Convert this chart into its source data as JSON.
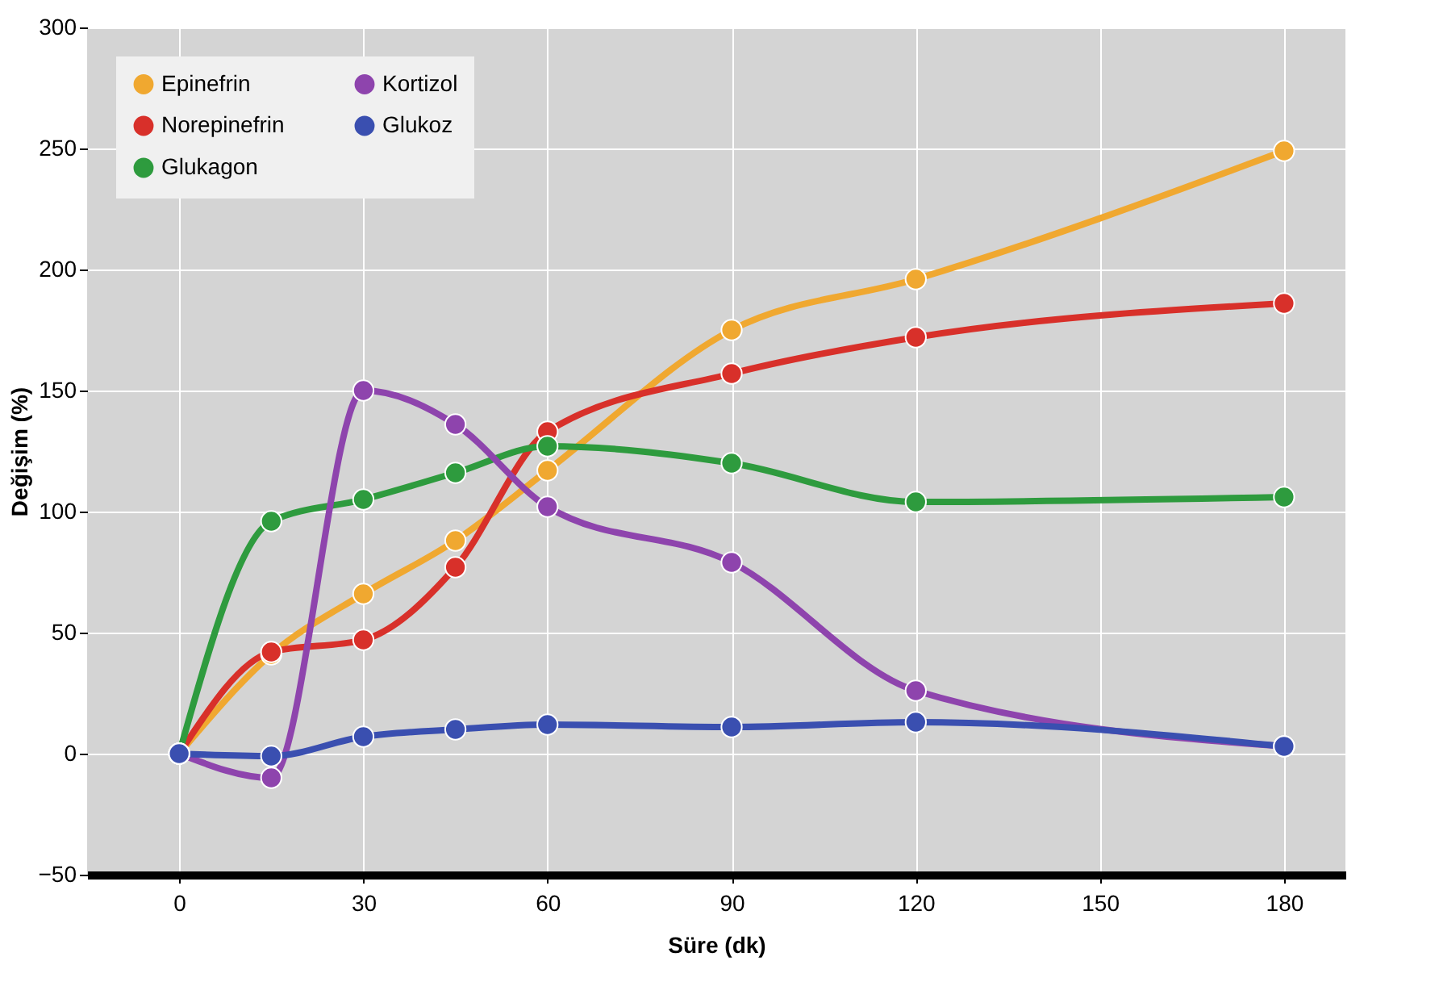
{
  "chart_data": {
    "type": "line",
    "xlabel": "Süre (dk)",
    "ylabel": "Değişim (%)",
    "x": [
      0,
      15,
      30,
      45,
      60,
      90,
      120,
      180
    ],
    "series": [
      {
        "name": "Epinefrin",
        "color": "#f0a830",
        "values": [
          0,
          41,
          66,
          88,
          117,
          175,
          196,
          249
        ]
      },
      {
        "name": "Norepinefrin",
        "color": "#d8302a",
        "values": [
          0,
          42,
          47,
          77,
          133,
          157,
          172,
          186
        ]
      },
      {
        "name": "Glukagon",
        "color": "#2e9b3e",
        "values": [
          0,
          96,
          105,
          116,
          127,
          120,
          104,
          106
        ]
      },
      {
        "name": "Kortizol",
        "color": "#8e44ad",
        "values": [
          0,
          -10,
          150,
          136,
          102,
          79,
          26,
          3
        ]
      },
      {
        "name": "Glukoz",
        "color": "#3a4fb0",
        "values": [
          0,
          -1,
          7,
          10,
          12,
          11,
          13,
          3
        ]
      }
    ],
    "xlim": [
      -15,
      190
    ],
    "xticks": [
      0,
      30,
      60,
      90,
      120,
      150,
      180
    ],
    "ylim": [
      -50,
      300
    ],
    "yticks": [
      -50,
      0,
      50,
      100,
      150,
      200,
      250,
      300
    ],
    "grid": true,
    "legend": "top left",
    "marker": "circle",
    "line_style": "solid"
  }
}
